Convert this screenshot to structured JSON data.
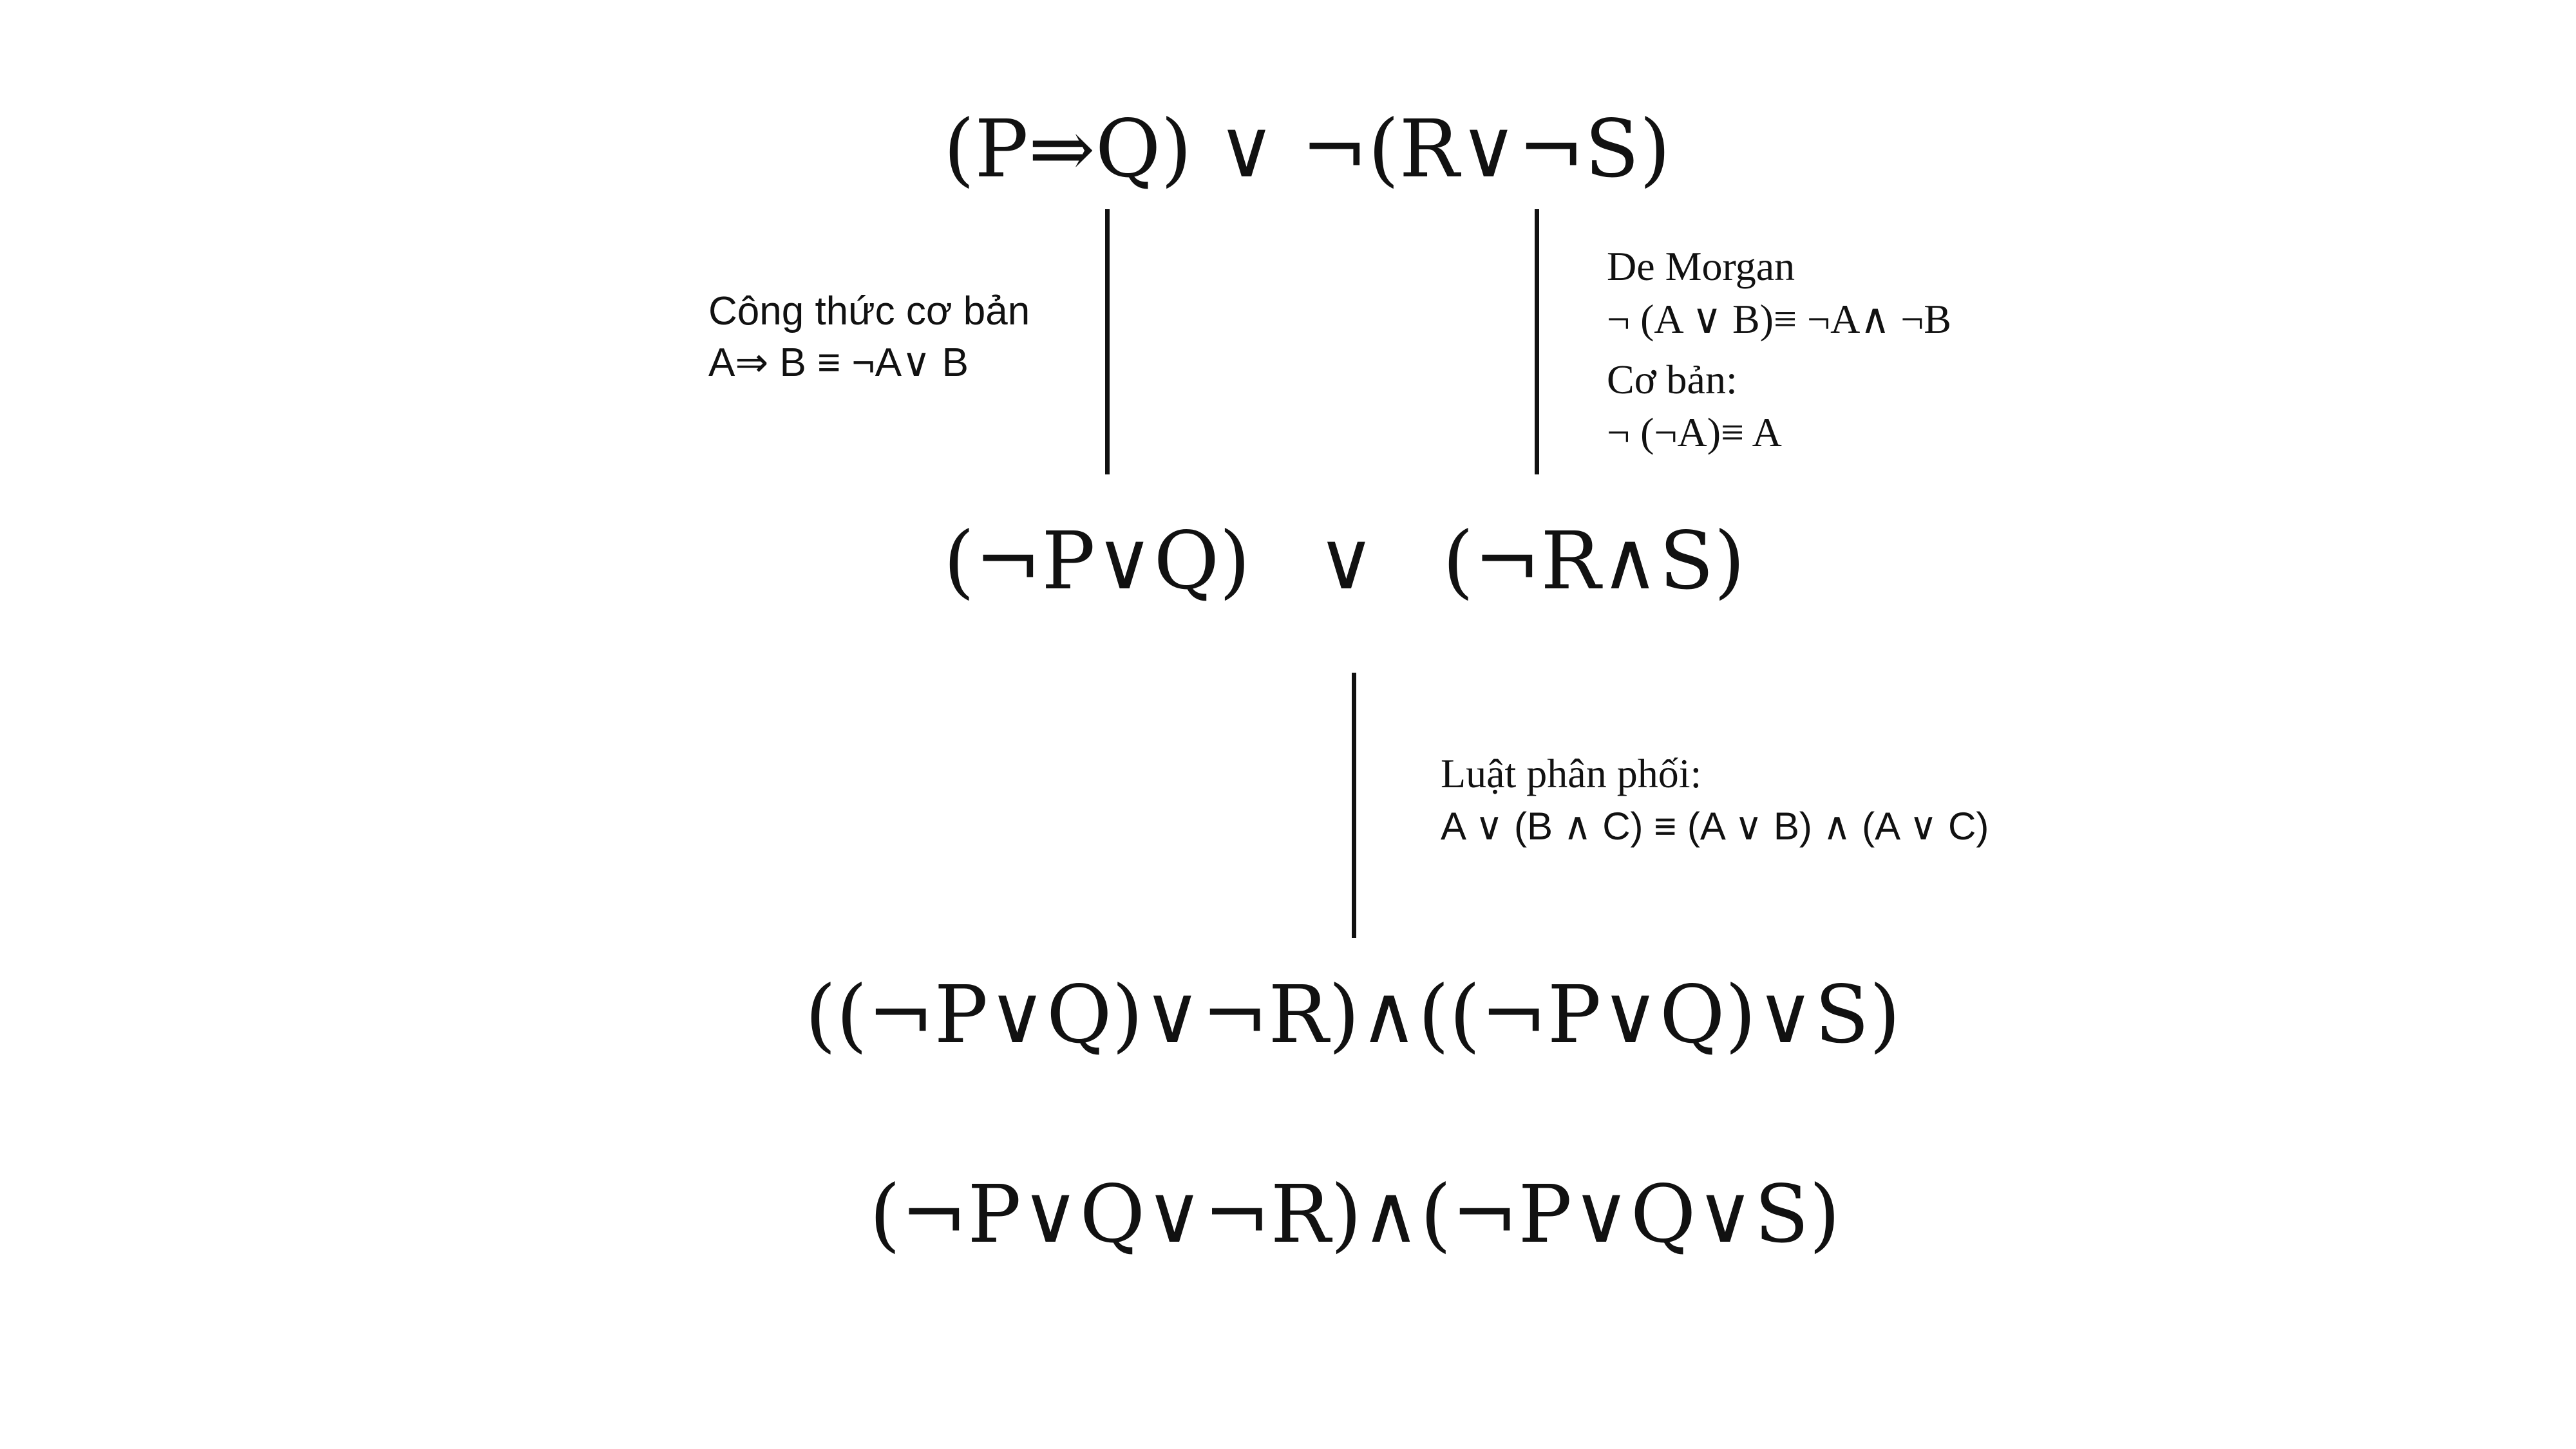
{
  "formulas": {
    "original": "(P⇒Q) ∨ ¬(R∨¬S)",
    "step1_left": "(¬P∨Q)",
    "step1_or": "∨",
    "step1_right": "(¬R∧S)",
    "step2": "((¬P∨Q)∨¬R)∧((¬P∨Q)∨S)",
    "step3": "(¬P∨Q∨¬R)∧(¬P∨Q∨S)"
  },
  "notes": {
    "basic_formula": {
      "title": "Công thức cơ bản",
      "rule": "A⇒ B ≡ ¬A∨ B"
    },
    "de_morgan": {
      "title": "De Morgan",
      "rule": "¬ (A ∨ B)≡ ¬A∧ ¬B",
      "subtitle": "Cơ bản:",
      "subrule": "¬ (¬A)≡ A"
    },
    "distributive": {
      "title": "Luật phân phối:",
      "rule": "A ∨ (B ∧ C) ≡ (A ∨ B) ∧ (A ∨ C)"
    }
  }
}
